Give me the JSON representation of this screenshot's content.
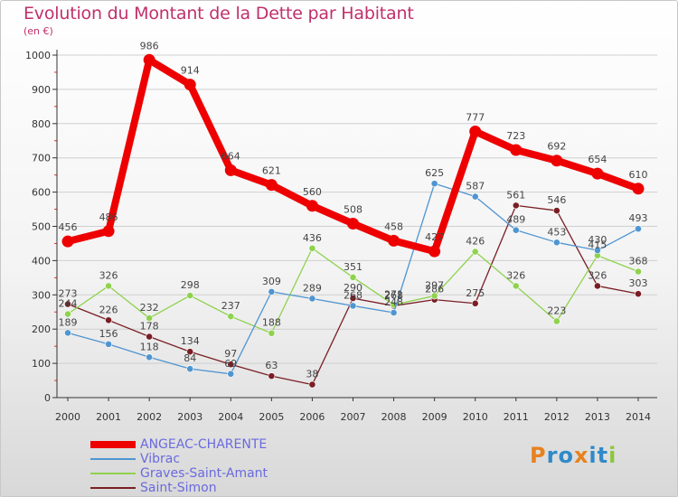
{
  "header": {
    "title": "Evolution du Montant de la Dette par Habitant",
    "unit": "(en €)"
  },
  "colors": {
    "title": "#c0306a",
    "axis": "#333333",
    "grid": "#cfcfcf",
    "legend_text": "#6a6adf"
  },
  "brand": {
    "letters": [
      "P",
      "r",
      "o",
      "x",
      "i",
      "t",
      "i"
    ],
    "colors": [
      "#e8811f",
      "#2f8ac9",
      "#2f8ac9",
      "#e8811f",
      "#2f8ac9",
      "#2f8ac9",
      "#8cc63f"
    ]
  },
  "chart_data": {
    "type": "line",
    "title": "Evolution du Montant de la Dette par Habitant",
    "ylabel": "(en €)",
    "xlabel": "",
    "ylim": [
      0,
      1000
    ],
    "yticks": [
      0,
      100,
      200,
      300,
      400,
      500,
      600,
      700,
      800,
      900,
      1000
    ],
    "categories": [
      "2000",
      "2001",
      "2002",
      "2003",
      "2004",
      "2005",
      "2006",
      "2007",
      "2008",
      "2009",
      "2010",
      "2011",
      "2012",
      "2013",
      "2014"
    ],
    "grid": "horizontal",
    "series": [
      {
        "name": "ANGEAC-CHARENTE",
        "color": "#ee0000",
        "values": [
          456,
          486,
          986,
          914,
          664,
          621,
          560,
          508,
          458,
          427,
          777,
          723,
          692,
          654,
          610
        ],
        "labels": [
          "456",
          "486",
          "986",
          "914",
          "664",
          "621",
          "560",
          "508",
          "458",
          "427",
          "777",
          "723",
          "692",
          "654",
          "610"
        ]
      },
      {
        "name": "Vibrac",
        "color": "#4f95d1",
        "values": [
          189,
          156,
          118,
          84,
          69,
          309,
          289,
          268,
          248,
          625,
          587,
          489,
          453,
          430,
          493
        ],
        "labels": [
          "189",
          "156",
          "118",
          "84",
          "69",
          "309",
          "289",
          "268",
          "248",
          "625",
          "587",
          "489",
          "453",
          "430",
          "493"
        ]
      },
      {
        "name": "Graves-Saint-Amant",
        "color": "#8fd24e",
        "values": [
          244,
          326,
          232,
          298,
          237,
          188,
          436,
          351,
          271,
          297,
          426,
          326,
          223,
          415,
          368
        ],
        "labels": [
          "244",
          "326",
          "232",
          "298",
          "237",
          "188",
          "436",
          "351",
          "271",
          "297",
          "426",
          "326",
          "223",
          "415",
          "368"
        ]
      },
      {
        "name": "Saint-Simon",
        "color": "#7a1e24",
        "values": [
          273,
          226,
          178,
          134,
          97,
          63,
          38,
          290,
          268,
          286,
          275,
          561,
          546,
          326,
          303
        ],
        "labels": [
          "273",
          "226",
          "178",
          "134",
          "97",
          "63",
          "38",
          "290",
          "268",
          "286",
          "275",
          "561",
          "546",
          "326",
          "303"
        ]
      }
    ]
  }
}
